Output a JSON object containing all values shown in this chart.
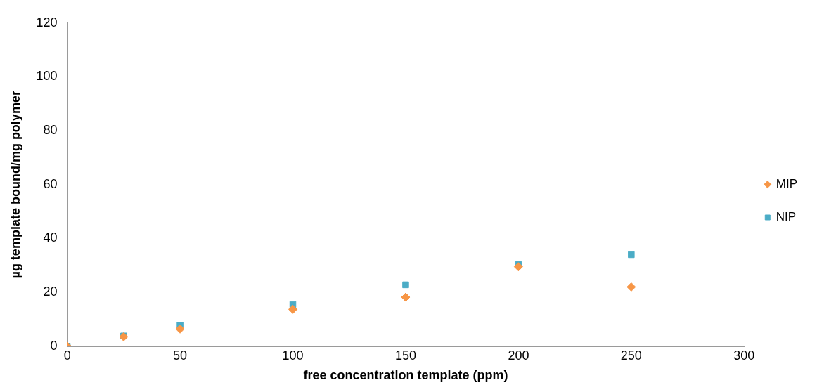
{
  "chart_data": {
    "type": "scatter",
    "xlabel": "free concentration template (ppm)",
    "ylabel": "µg template bound/mg polymer",
    "x": [
      0,
      25,
      50,
      100,
      150,
      200,
      250
    ],
    "series": [
      {
        "name": "MIP",
        "color": "#f79646",
        "marker": "diamond",
        "values": [
          0,
          3.5,
          6.4,
          13.7,
          18.2,
          29.5,
          22
        ]
      },
      {
        "name": "NIP",
        "color": "#4bacc6",
        "marker": "square",
        "values": [
          0,
          3.8,
          7.8,
          15.5,
          22.8,
          30.3,
          34
        ]
      }
    ],
    "xlim": [
      0,
      300
    ],
    "xticks": [
      0,
      50,
      100,
      150,
      200,
      250,
      300
    ],
    "ylim": [
      0,
      120
    ],
    "yticks": [
      0,
      20,
      40,
      60,
      80,
      100,
      120
    ],
    "grid": false,
    "legend": "right"
  }
}
